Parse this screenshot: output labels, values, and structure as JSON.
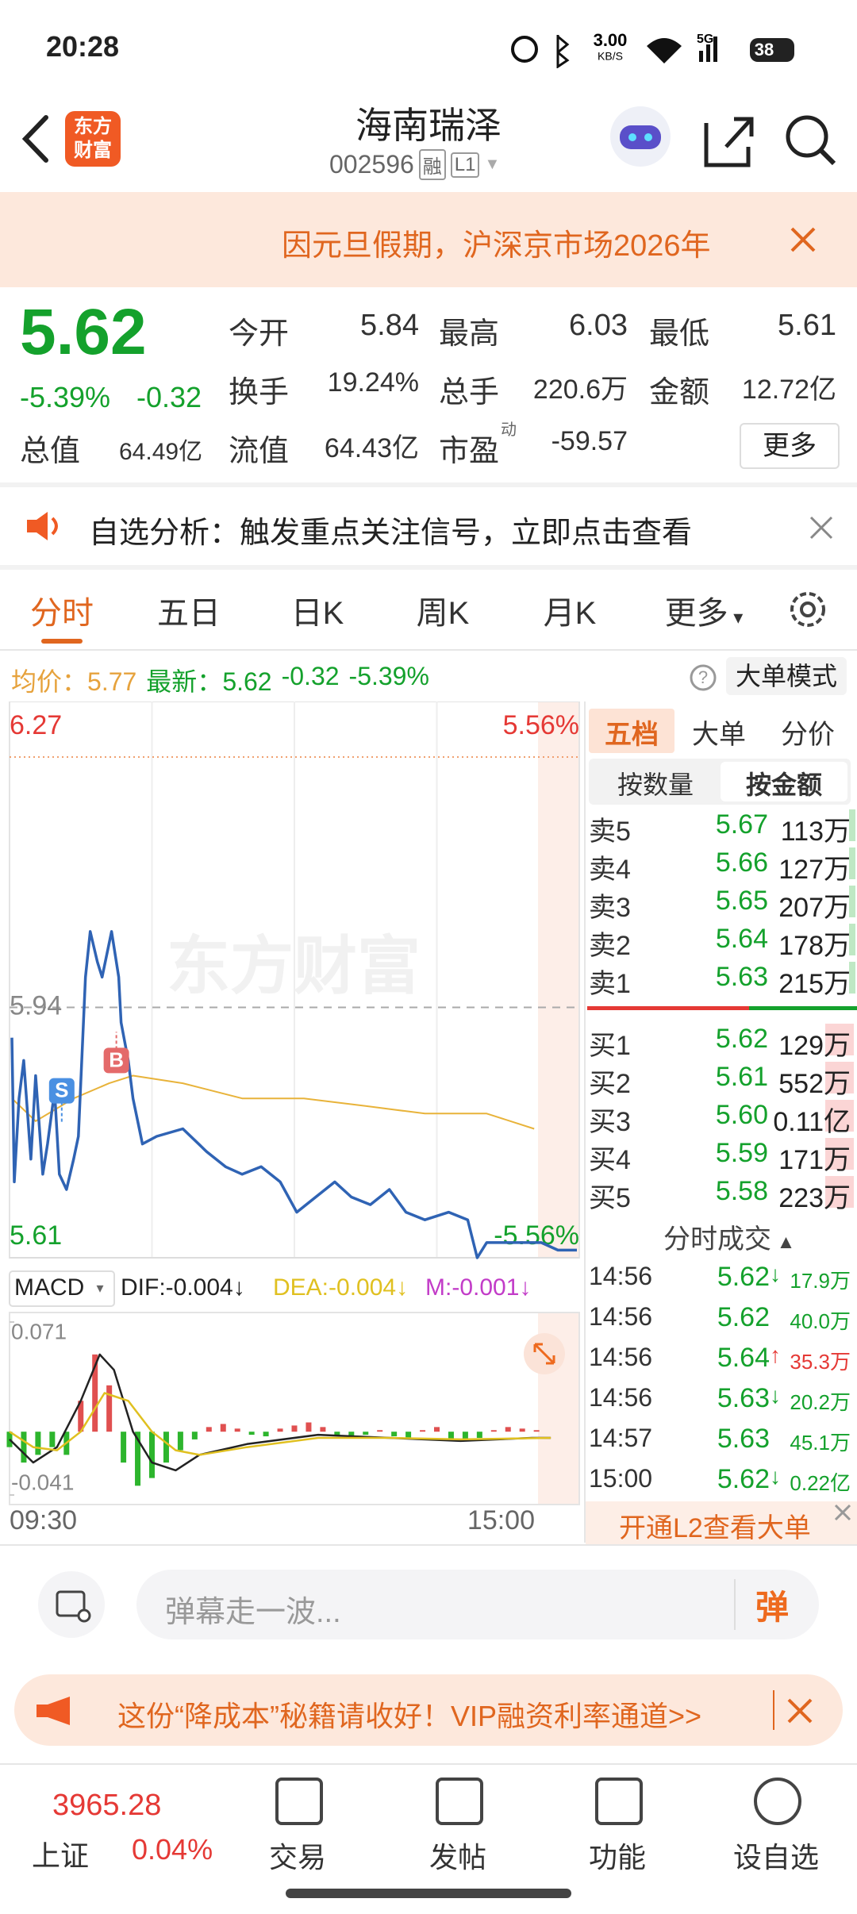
{
  "status_bar": {
    "time": "20:28",
    "speed": "3.00",
    "speed_unit": "KB/S",
    "network": "5G",
    "battery": "38"
  },
  "header": {
    "logo_lines": [
      "东方",
      "财富"
    ],
    "title": "海南瑞泽",
    "code": "002596",
    "badges": [
      "融",
      "L1"
    ]
  },
  "notice": {
    "text": "因元旦假期，沪深京市场2026年"
  },
  "quote": {
    "price": "5.62",
    "change_pct": "-5.39%",
    "change": "-0.32",
    "total_value": {
      "label": "总值",
      "value": "64.49亿"
    },
    "stats": [
      {
        "label": "今开",
        "value": "5.84"
      },
      {
        "label": "最高",
        "value": "6.03"
      },
      {
        "label": "最低",
        "value": "5.61"
      },
      {
        "label": "换手",
        "value": "19.24%"
      },
      {
        "label": "总手",
        "value": "220.6万"
      },
      {
        "label": "金额",
        "value": "12.72亿"
      },
      {
        "label": "流值",
        "value": "64.43亿"
      },
      {
        "label": "市盈",
        "sup": "动",
        "value": "-59.57"
      }
    ],
    "more": "更多"
  },
  "analysis": {
    "text": "自选分析：触发重点关注信号，立即点击查看"
  },
  "tabs": [
    "分时",
    "五日",
    "日K",
    "周K",
    "月K",
    "更多"
  ],
  "summary": {
    "avg": "5.77",
    "last": "5.62",
    "change": "-0.32",
    "change_pct": "-5.39%",
    "mode_button": "大单模式"
  },
  "chart_data": [
    {
      "type": "line",
      "watermark": "东方财富",
      "xlim": [
        0,
        240
      ],
      "xticks": [
        {
          "value": 0,
          "label": "09:30"
        },
        {
          "value": 240,
          "label": "15:00"
        }
      ],
      "ylim": [
        5.61,
        6.27
      ],
      "yticks": [
        5.61,
        5.94,
        6.27
      ],
      "y2lim": [
        -5.56,
        5.56
      ],
      "y2ticks": [
        {
          "value": -5.56,
          "label": "-5.56%"
        },
        {
          "value": 5.56,
          "label": "5.56%"
        }
      ],
      "series": [
        {
          "name": "最新：",
          "color": "#2f63b4",
          "x": [
            1,
            2,
            4,
            6,
            9,
            11,
            14,
            16,
            19,
            21,
            24,
            27,
            29,
            32,
            34,
            37,
            39,
            43,
            46,
            47,
            50,
            52,
            56,
            62,
            73,
            83,
            91,
            98,
            106,
            114,
            121,
            129,
            137,
            144,
            152,
            160,
            167,
            175,
            185,
            193,
            197,
            201,
            208,
            216,
            224,
            231,
            239
          ],
          "values": [
            5.9,
            5.71,
            5.82,
            5.87,
            5.74,
            5.85,
            5.72,
            5.76,
            5.83,
            5.72,
            5.7,
            5.74,
            5.77,
            5.98,
            6.04,
            6.0,
            5.98,
            6.04,
            5.98,
            5.92,
            5.87,
            5.82,
            5.76,
            5.77,
            5.78,
            5.75,
            5.73,
            5.72,
            5.73,
            5.71,
            5.67,
            5.69,
            5.71,
            5.69,
            5.68,
            5.7,
            5.67,
            5.66,
            5.67,
            5.66,
            5.61,
            5.63,
            5.63,
            5.63,
            5.63,
            5.62,
            5.62
          ]
        },
        {
          "name": "均价：",
          "color": "#e8b33a",
          "x": [
            1,
            11,
            27,
            42,
            52,
            73,
            98,
            124,
            150,
            175,
            201,
            221
          ],
          "values": [
            5.82,
            5.79,
            5.82,
            5.84,
            5.85,
            5.84,
            5.82,
            5.82,
            5.81,
            5.8,
            5.8,
            5.78
          ]
        }
      ],
      "markers": [
        {
          "label": "S",
          "x": 22,
          "value": 5.83
        },
        {
          "label": "B",
          "x": 45,
          "value": 5.87
        }
      ]
    },
    {
      "type": "macd",
      "title": "MACD",
      "xlim": [
        0,
        240
      ],
      "ylim": [
        -0.041,
        0.071
      ],
      "yticks": [
        -0.041,
        0.071
      ],
      "series": [
        {
          "name": "DIF:-0.004↓",
          "kind": "line",
          "color": "#222222",
          "x": [
            0,
            10,
            20,
            30,
            38,
            44,
            52,
            60,
            70,
            80,
            100,
            130,
            160,
            190,
            220,
            228
          ],
          "values": [
            -0.005,
            -0.02,
            -0.01,
            0.02,
            0.05,
            0.04,
            0.0,
            -0.02,
            -0.025,
            -0.015,
            -0.008,
            -0.002,
            -0.004,
            -0.006,
            -0.004,
            -0.004
          ]
        },
        {
          "name": "DEA:-0.004↓",
          "kind": "line",
          "color": "#e0c020",
          "x": [
            0,
            10,
            20,
            30,
            40,
            50,
            60,
            70,
            80,
            100,
            130,
            160,
            190,
            228
          ],
          "values": [
            0.0,
            -0.01,
            -0.012,
            0.0,
            0.025,
            0.02,
            0.0,
            -0.012,
            -0.015,
            -0.01,
            -0.004,
            -0.004,
            -0.005,
            -0.004
          ]
        },
        {
          "name": "M:-0.001↓",
          "kind": "bar",
          "color": "#c23cc8",
          "x": [
            0,
            6,
            12,
            18,
            24,
            30,
            36,
            42,
            48,
            54,
            60,
            66,
            72,
            78,
            84,
            90,
            96,
            102,
            108,
            114,
            120,
            126,
            132,
            138,
            144,
            150,
            156,
            162,
            168,
            174,
            180,
            186,
            192,
            198,
            204,
            210,
            216,
            222
          ],
          "values": [
            -0.01,
            -0.02,
            -0.015,
            -0.01,
            -0.015,
            0.02,
            0.05,
            0.03,
            -0.02,
            -0.035,
            -0.03,
            -0.02,
            -0.012,
            -0.005,
            0.003,
            0.005,
            0.002,
            -0.002,
            -0.003,
            0.002,
            0.004,
            0.006,
            0.003,
            -0.002,
            -0.004,
            -0.002,
            0.001,
            -0.003,
            -0.004,
            0.001,
            0.003,
            -0.005,
            -0.006,
            -0.004,
            0.001,
            0.003,
            0.002,
            0.001
          ]
        }
      ]
    }
  ],
  "order_book": {
    "tabs": [
      "五档",
      "大单",
      "分价"
    ],
    "modes": [
      "按数量",
      "按金额"
    ],
    "asks": [
      {
        "label": "卖5",
        "price": "5.67",
        "volume": "113万"
      },
      {
        "label": "卖4",
        "price": "5.66",
        "volume": "127万"
      },
      {
        "label": "卖3",
        "price": "5.65",
        "volume": "207万"
      },
      {
        "label": "卖2",
        "price": "5.64",
        "volume": "178万"
      },
      {
        "label": "卖1",
        "price": "5.63",
        "volume": "215万"
      }
    ],
    "bids": [
      {
        "label": "买1",
        "price": "5.62",
        "volume": "129万"
      },
      {
        "label": "买2",
        "price": "5.61",
        "volume": "552万"
      },
      {
        "label": "买3",
        "price": "5.60",
        "volume": "0.11亿"
      },
      {
        "label": "买4",
        "price": "5.59",
        "volume": "171万"
      },
      {
        "label": "买5",
        "price": "5.58",
        "volume": "223万"
      }
    ]
  },
  "trades": {
    "title": "分时成交",
    "rows": [
      {
        "time": "14:56",
        "price": "5.62",
        "arrow": "↓",
        "volume": "17.9万"
      },
      {
        "time": "14:56",
        "price": "5.62",
        "volume": "40.0万"
      },
      {
        "time": "14:56",
        "price": "5.64",
        "arrow": "↑",
        "volume": "35.3万"
      },
      {
        "time": "14:56",
        "price": "5.63",
        "arrow": "↓",
        "volume": "20.2万"
      },
      {
        "time": "14:57",
        "price": "5.63",
        "volume": "45.1万"
      },
      {
        "time": "15:00",
        "price": "5.62",
        "arrow": "↓",
        "volume": "0.22亿"
      }
    ]
  },
  "l2_banner": "开通L2查看大单",
  "comment_bar": {
    "placeholder": "弹幕走一波...",
    "send": "弹"
  },
  "promo": {
    "text": "这份“降成本”秘籍请收好！VIP融资利率通道>>"
  },
  "nav": {
    "index_value": "3965.28",
    "index_name": "上证",
    "index_change": "0.04%",
    "items": [
      "交易",
      "发帖",
      "功能",
      "设自选"
    ]
  }
}
